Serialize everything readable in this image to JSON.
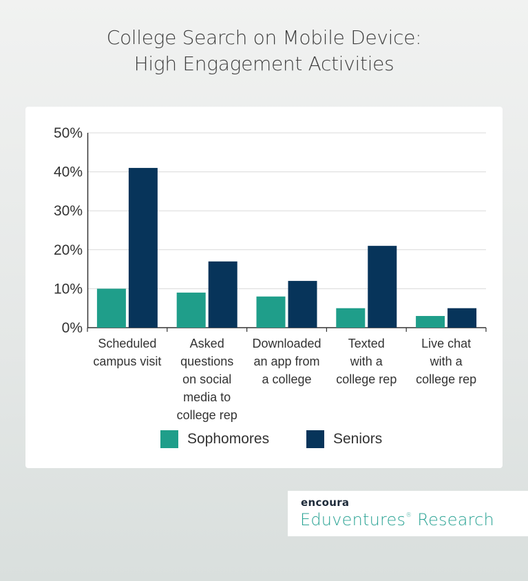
{
  "title_lines": [
    "College Search on Mobile Device:",
    "High Engagement Activities"
  ],
  "colors": {
    "sophomores": "#1f9e8a",
    "seniors": "#07345a"
  },
  "chart_data": {
    "type": "bar",
    "categories": [
      [
        "Scheduled",
        "campus visit"
      ],
      [
        "Asked",
        "questions",
        "on social",
        "media to",
        "college rep"
      ],
      [
        "Downloaded",
        "an app from",
        "a college"
      ],
      [
        "Texted",
        "with a",
        "college rep"
      ],
      [
        "Live chat",
        "with a",
        "college rep"
      ]
    ],
    "series": [
      {
        "name": "Sophomores",
        "values": [
          10,
          9,
          8,
          5,
          3
        ]
      },
      {
        "name": "Seniors",
        "values": [
          41,
          17,
          12,
          21,
          5
        ]
      }
    ],
    "ylim": [
      0,
      50
    ],
    "yticks": [
      0,
      10,
      20,
      30,
      40,
      50
    ],
    "ytick_labels": [
      "0%",
      "10%",
      "20%",
      "30%",
      "40%",
      "50%"
    ],
    "grid": true,
    "legend_position": "bottom"
  },
  "brand": {
    "top": "encoura",
    "bottom_main": "Eduventures",
    "bottom_mark": "®",
    "bottom_tail": " Research"
  }
}
